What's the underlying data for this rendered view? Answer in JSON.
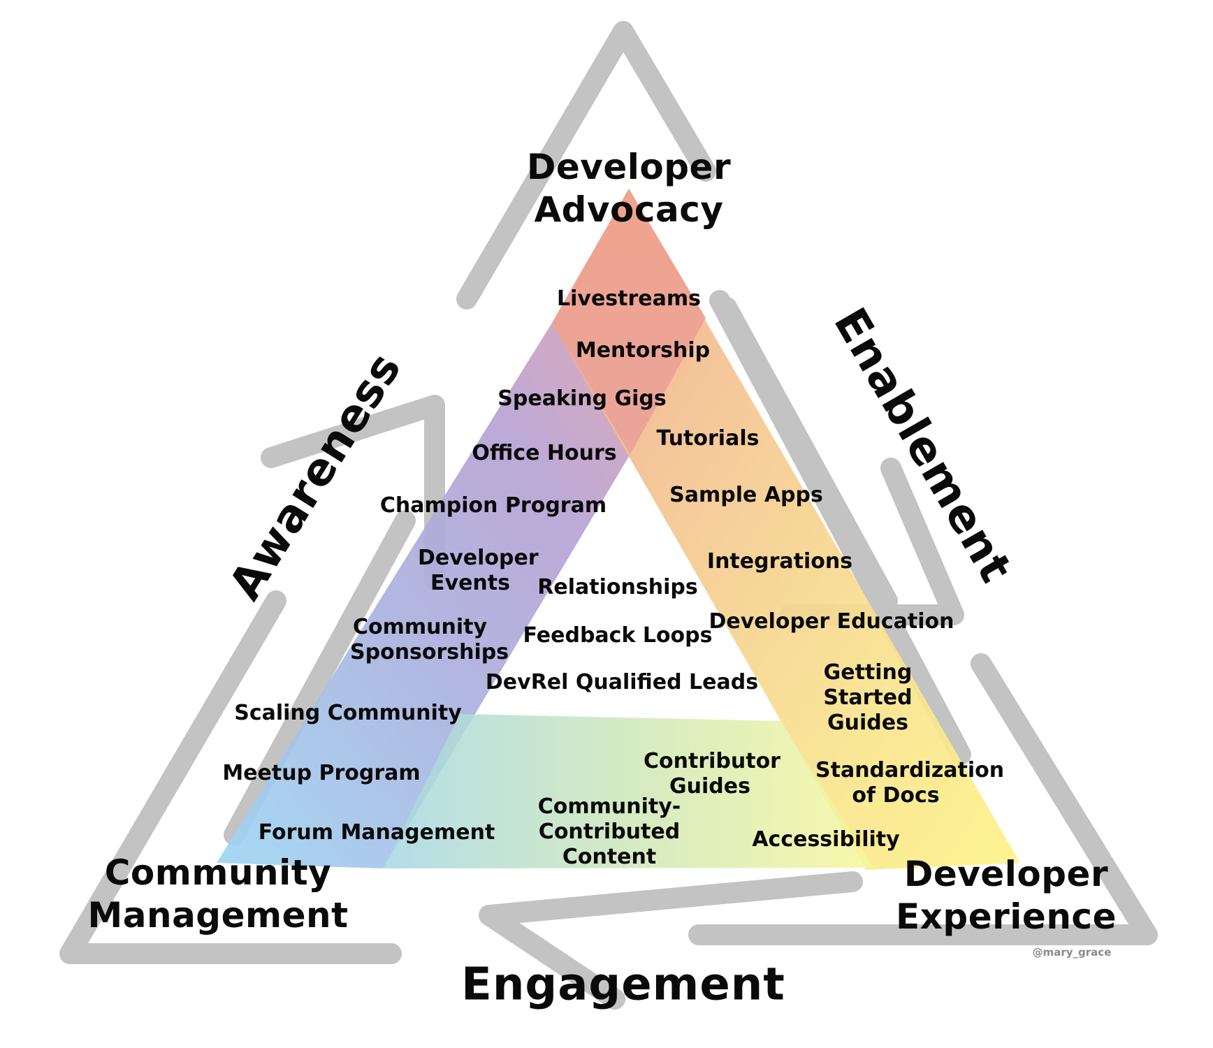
{
  "corners": {
    "top": [
      "Developer",
      "Advocacy"
    ],
    "bottom_left": [
      "Community",
      "Management"
    ],
    "bottom_right": [
      "Developer",
      "Experience"
    ]
  },
  "sides": {
    "left": "Awareness",
    "right": "Enablement",
    "bottom": "Engagement"
  },
  "items": {
    "advocacy": [
      "Livestreams",
      "Mentorship",
      "Speaking Gigs",
      "Office Hours",
      "Champion Program"
    ],
    "community": [
      "Developer Events",
      "Community Sponsorships",
      "Scaling Community",
      "Meetup Program",
      "Forum Management"
    ],
    "experience": [
      "Tutorials",
      "Sample Apps",
      "Integrations",
      "Developer Education",
      "Getting Started Guides",
      "Standardization of Docs",
      "Accessibility"
    ],
    "engagement": [
      "Contributor Guides",
      "Community-Contributed Content"
    ],
    "center": [
      "Relationships",
      "Feedback Loops",
      "DevRel Qualified Leads"
    ]
  },
  "credit": "@mary_grace",
  "colors": {
    "arrow": "#c3c3c3",
    "advocacy_band": "#f0a690",
    "community_band_top": "#b09ed8",
    "community_band_bottom": "#9fd3f2",
    "experience_band_top": "#f3c090",
    "experience_band_bottom": "#fdf28a",
    "engagement_band_left": "#a9d9e2",
    "engagement_band_right": "#f6f7a0",
    "text": "#0a0a0a"
  }
}
